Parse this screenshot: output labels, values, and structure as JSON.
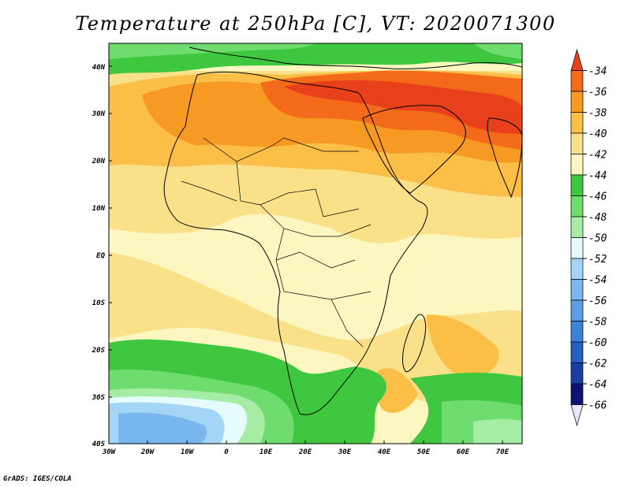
{
  "title": "Temperature at 250hPa [C], VT: 2020071300",
  "credit": "GrADS: IGES/COLA",
  "axes": {
    "lon_labels": [
      "30W",
      "20W",
      "10W",
      "0",
      "10E",
      "20E",
      "30E",
      "40E",
      "50E",
      "60E",
      "70E"
    ],
    "lat_labels": [
      "40N",
      "30N",
      "20N",
      "10N",
      "EQ",
      "10S",
      "20S",
      "30S",
      "40S"
    ]
  },
  "colorbar": {
    "levels": [
      "-34",
      "-36",
      "-38",
      "-40",
      "-42",
      "-44",
      "-46",
      "-48",
      "-50",
      "-52",
      "-54",
      "-56",
      "-58",
      "-60",
      "-62",
      "-64",
      "-66"
    ],
    "colors": [
      "#e8401a",
      "#f36a1b",
      "#f79a23",
      "#fbbe47",
      "#fbe08a",
      "#fcf7c1",
      "#3fc83f",
      "#6fdc6f",
      "#a5eca5",
      "#e6fcfc",
      "#a5d5f6",
      "#7ab7ee",
      "#5a9fe4",
      "#3c82d6",
      "#2360c2",
      "#1a3ea0",
      "#0b1470",
      "#e6e6fa"
    ]
  }
}
